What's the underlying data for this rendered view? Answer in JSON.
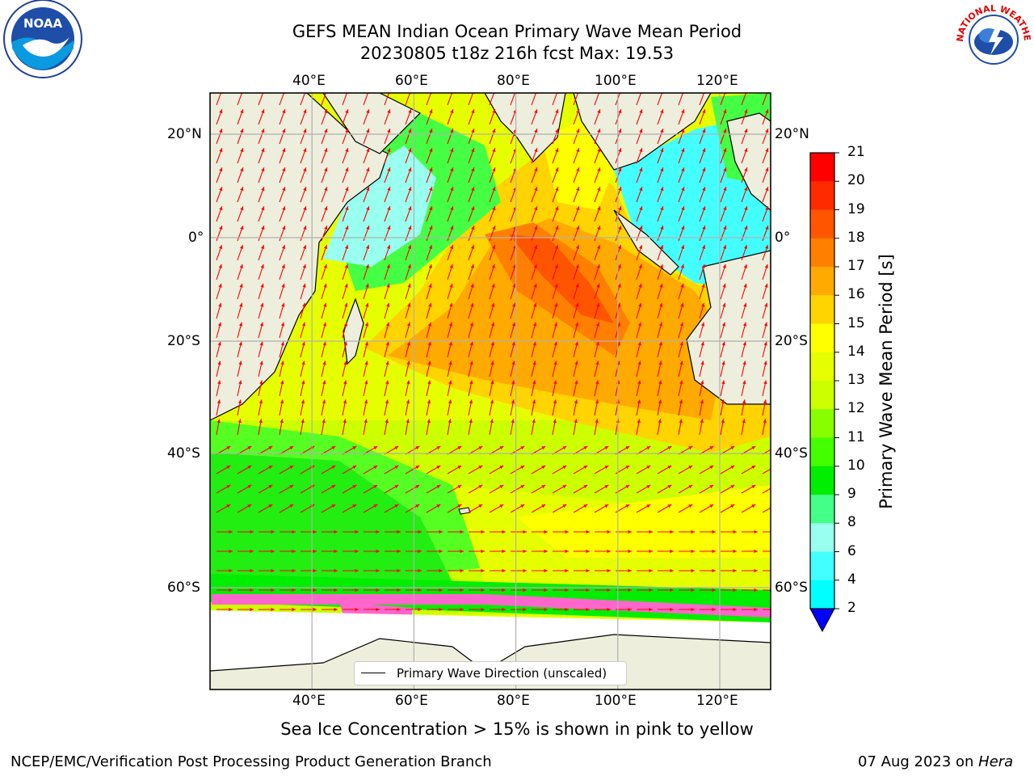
{
  "title": {
    "line1": "GEFS MEAN Indian Ocean Primary Wave Mean Period",
    "line2": "20230805 t18z 216h fcst   Max: 19.53"
  },
  "map": {
    "lon_ticks": [
      "40°E",
      "60°E",
      "80°E",
      "100°E",
      "120°E"
    ],
    "lat_ticks_left": [
      "20°N",
      "0°",
      "20°S",
      "40°S",
      "60°S"
    ],
    "lat_ticks_right": [
      "20°N",
      "0°",
      "20°S",
      "40°S",
      "60°S"
    ],
    "lon_range": [
      20,
      130
    ],
    "lat_range": [
      -72,
      28
    ],
    "legend_label": "Primary Wave Direction (unscaled)"
  },
  "colorbar": {
    "label": "Primary Wave Mean Period [s]",
    "ticks": [
      "21",
      "20",
      "19",
      "18",
      "17",
      "16",
      "15",
      "14",
      "13",
      "12",
      "11",
      "10",
      "9",
      "8",
      "6",
      "4",
      "2"
    ],
    "colors": [
      "#ff0000",
      "#ff2a00",
      "#ff5500",
      "#ff8000",
      "#ffaa00",
      "#ffd400",
      "#ffff00",
      "#e6ff00",
      "#ccff00",
      "#88ff00",
      "#44ff00",
      "#00ee00",
      "#44ff88",
      "#99ffee",
      "#44ffff",
      "#00ffff",
      "#00ccff",
      "#0066ff",
      "#0000ff"
    ],
    "extend_color": "#0000ff"
  },
  "logos": {
    "noaa_text": "NOAA",
    "nws_text": "NATIONAL WEATHER SERVICE"
  },
  "caption": "Sea Ice Concentration > 15% is shown in pink to yellow",
  "footer": {
    "left": "NCEP/EMC/Verification Post Processing Product Generation Branch",
    "right_prefix": "07 Aug 2023 on ",
    "right_host": "Hera"
  },
  "colors": {
    "land": "#eeeedd",
    "arrow": "#ff0000",
    "grid": "#b0b0b0"
  }
}
